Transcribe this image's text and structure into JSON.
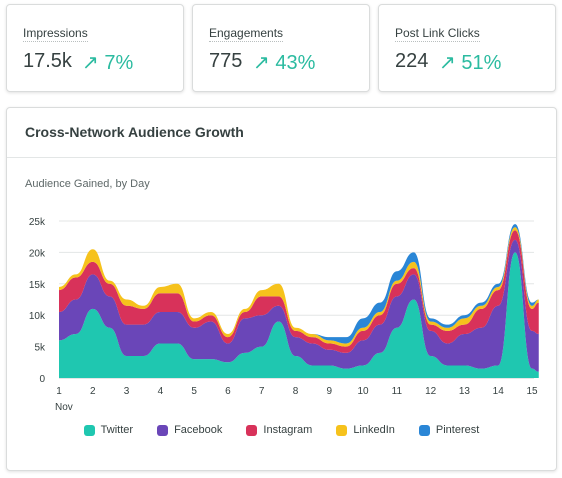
{
  "metrics": [
    {
      "label": "Impressions",
      "value": "17.5k",
      "change": "7%"
    },
    {
      "label": "Engagements",
      "value": "775",
      "change": "43%"
    },
    {
      "label": "Post Link Clicks",
      "value": "224",
      "change": "51%"
    }
  ],
  "chart_card": {
    "title": "Cross-Network Audience Growth",
    "subtitle": "Audience Gained, by Day"
  },
  "colors": {
    "Twitter": "#1fc7b0",
    "Facebook": "#6a46b8",
    "Instagram": "#d8325a",
    "LinkedIn": "#f6c21c",
    "Pinterest": "#2a86d6",
    "accent_up": "#2bbba0"
  },
  "chart_data": {
    "type": "area",
    "stacked": true,
    "title": "Cross-Network Audience Growth",
    "subtitle": "Audience Gained, by Day",
    "x": [
      1,
      1.5,
      2,
      2.5,
      3,
      3.5,
      4,
      4.5,
      5,
      5.5,
      6,
      6.5,
      7,
      7.5,
      8,
      8.5,
      9,
      9.5,
      10,
      10.5,
      11,
      11.5,
      12,
      12.5,
      13,
      13.5,
      14,
      14.5,
      15,
      15.2
    ],
    "x_ticks": [
      "1",
      "2",
      "3",
      "4",
      "5",
      "6",
      "7",
      "8",
      "9",
      "10",
      "11",
      "12",
      "13",
      "14",
      "15"
    ],
    "x_sublabel": "Nov",
    "y_ticks": [
      "0",
      "5k",
      "10k",
      "15k",
      "20k",
      "25k"
    ],
    "ylim": [
      0,
      25000
    ],
    "legend_position": "bottom",
    "series": [
      {
        "name": "Twitter",
        "values": [
          6000,
          7000,
          11000,
          8000,
          3500,
          3500,
          5500,
          5500,
          3000,
          3000,
          2500,
          4000,
          5000,
          9000,
          3500,
          2000,
          2000,
          1500,
          2000,
          4000,
          8000,
          12500,
          3500,
          2000,
          2000,
          1500,
          2000,
          20000,
          1500,
          1000
        ]
      },
      {
        "name": "Facebook",
        "values": [
          4500,
          5500,
          5500,
          5000,
          5000,
          5000,
          5000,
          5000,
          5000,
          6000,
          3000,
          5500,
          5000,
          2500,
          3000,
          3500,
          2500,
          2500,
          4000,
          4500,
          5000,
          4000,
          4000,
          3500,
          5000,
          6500,
          9500,
          2000,
          6000,
          6000
        ]
      },
      {
        "name": "Instagram",
        "values": [
          3500,
          3500,
          2000,
          2000,
          3000,
          2500,
          3000,
          3000,
          1000,
          1000,
          1000,
          1000,
          3000,
          1500,
          1000,
          1000,
          1000,
          1000,
          1500,
          1500,
          2000,
          1000,
          1000,
          2000,
          1500,
          3000,
          2500,
          1500,
          3500,
          5000
        ]
      },
      {
        "name": "LinkedIn",
        "values": [
          500,
          500,
          2000,
          500,
          1000,
          500,
          1000,
          1500,
          500,
          500,
          500,
          500,
          1000,
          2000,
          500,
          500,
          500,
          500,
          500,
          500,
          500,
          1000,
          500,
          500,
          1000,
          500,
          500,
          500,
          500,
          500
        ]
      },
      {
        "name": "Pinterest",
        "values": [
          0,
          0,
          0,
          0,
          0,
          0,
          0,
          0,
          0,
          0,
          0,
          0,
          0,
          0,
          0,
          0,
          500,
          1000,
          1500,
          1500,
          1500,
          1500,
          500,
          500,
          500,
          500,
          500,
          500,
          500,
          0
        ]
      }
    ]
  }
}
